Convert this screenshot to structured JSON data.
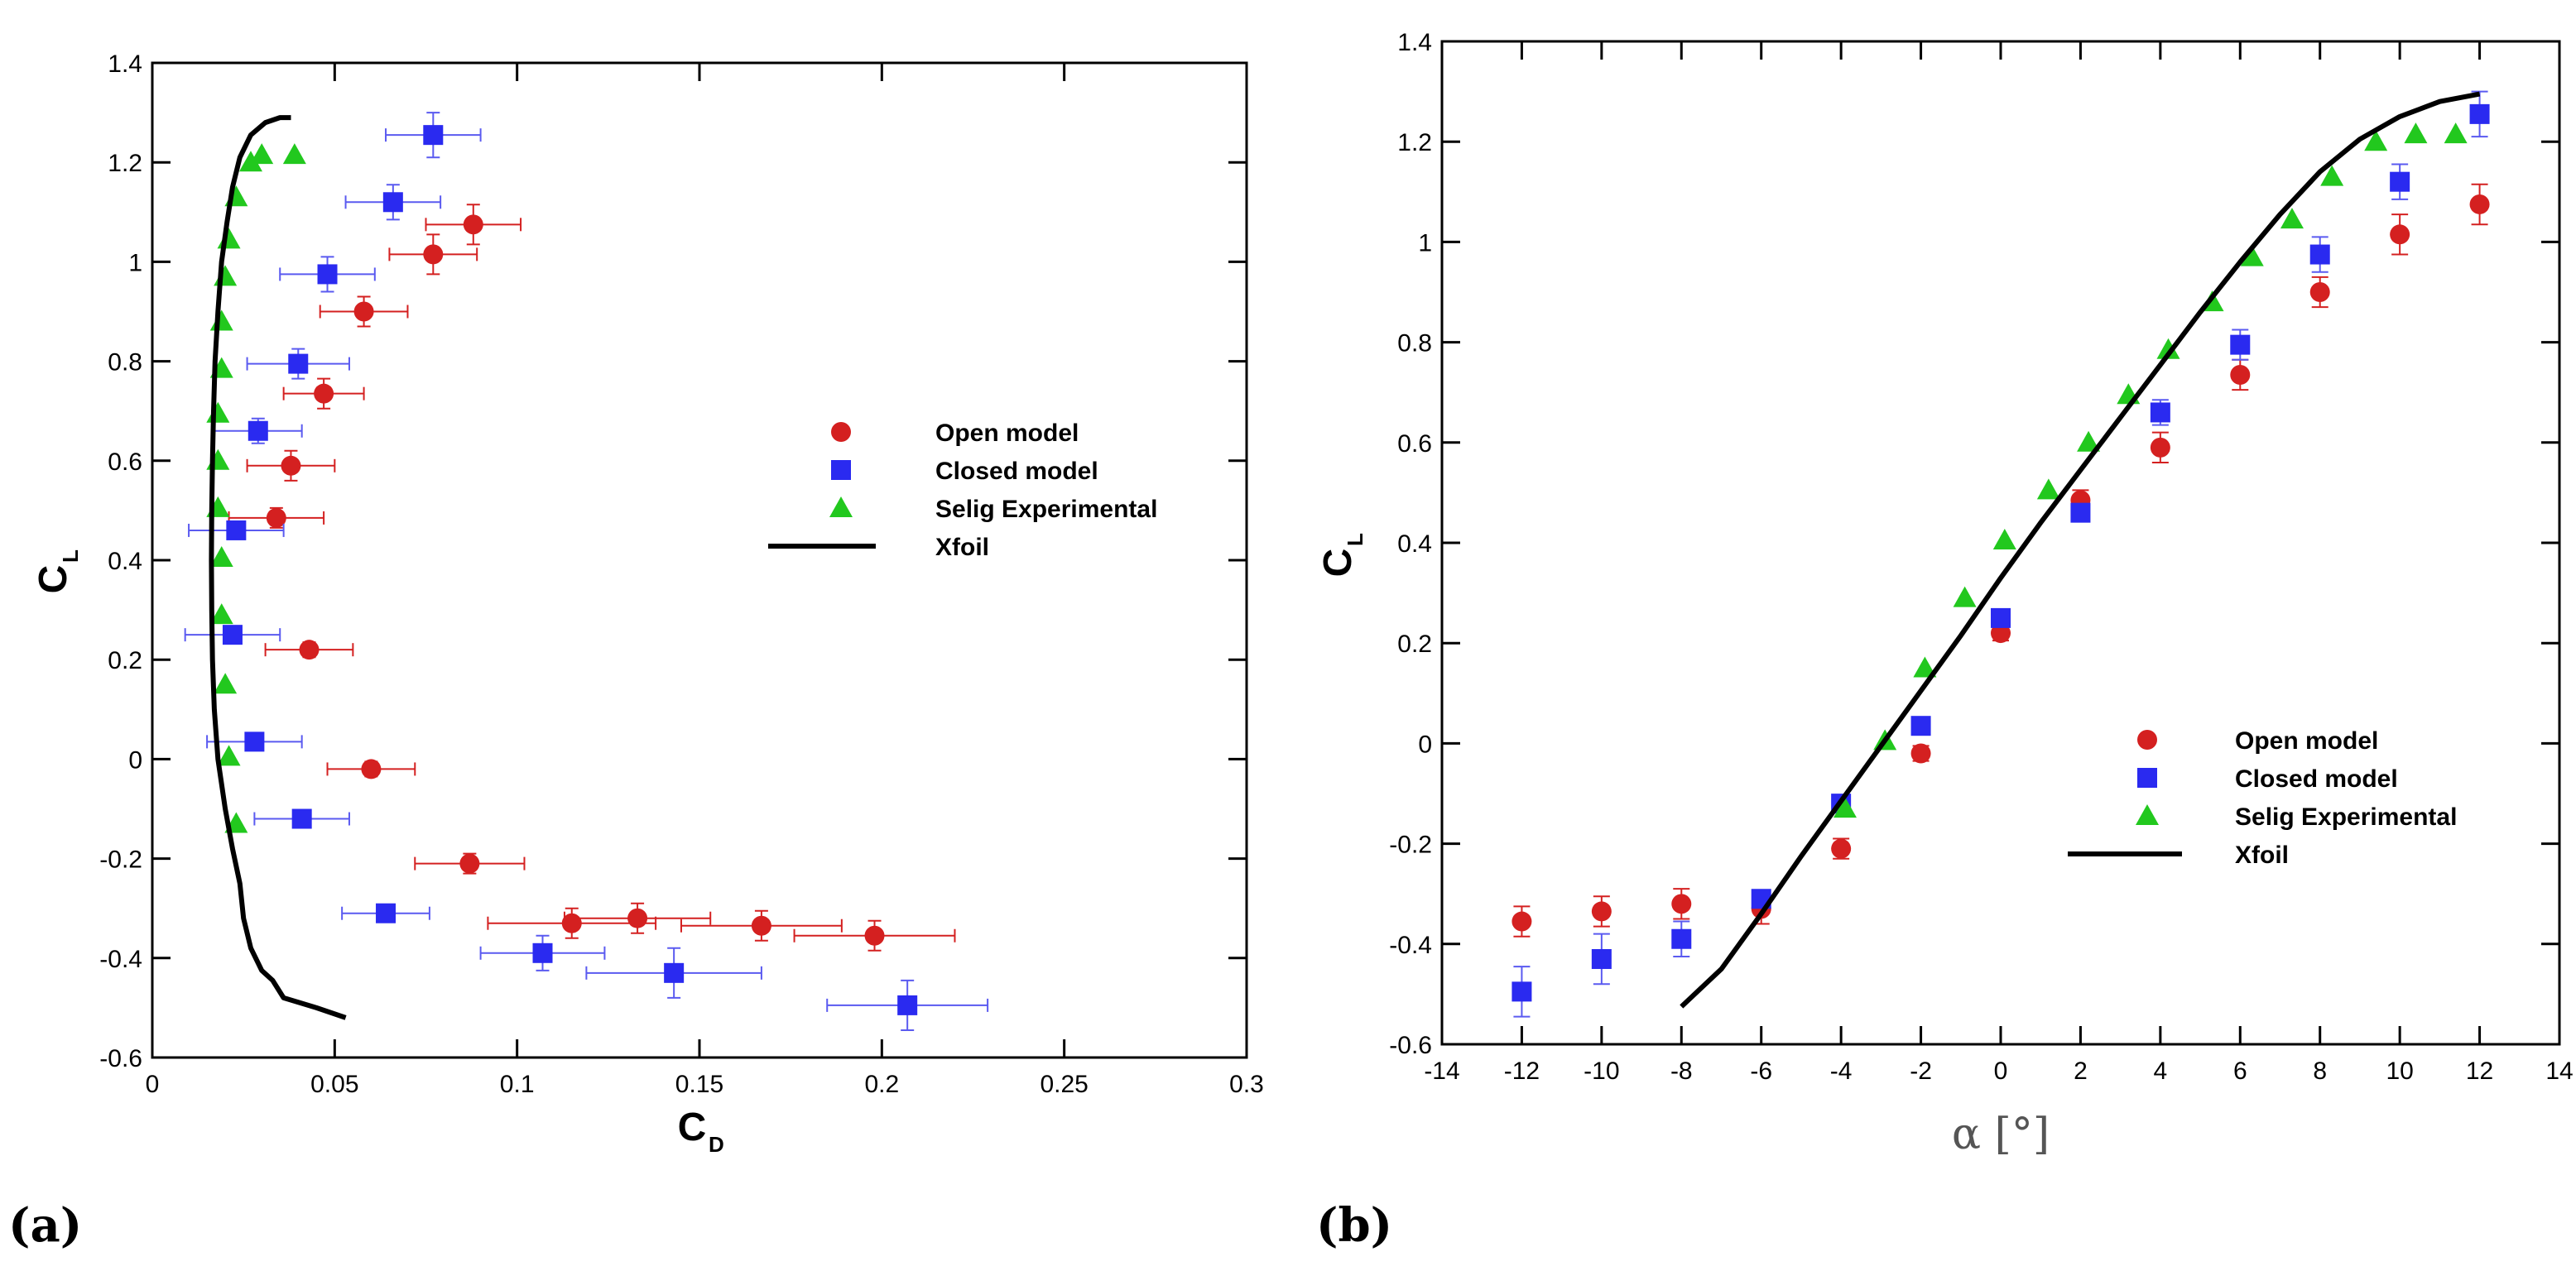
{
  "chart_data": [
    {
      "type": "scatter",
      "panel_label": "(a)",
      "xlabel": "C",
      "xlabel_sub": "D",
      "ylabel": "C",
      "ylabel_sub": "L",
      "xlim": [
        0,
        0.3
      ],
      "ylim": [
        -0.6,
        1.4
      ],
      "xticks": [
        0,
        0.05,
        0.1,
        0.15,
        0.2,
        0.25,
        0.3
      ],
      "xtick_labels": [
        "0",
        "0.05",
        "0.1",
        "0.15",
        "0.2",
        "0.25",
        "0.3"
      ],
      "yticks": [
        -0.6,
        -0.4,
        -0.2,
        0,
        0.2,
        0.4,
        0.6,
        0.8,
        1,
        1.2,
        1.4
      ],
      "ytick_labels": [
        "-0.6",
        "-0.4",
        "-0.2",
        "0",
        "0.2",
        "0.4",
        "0.6",
        "0.8",
        "1",
        "1.2",
        "1.4"
      ],
      "legend_position": "center-right",
      "series": [
        {
          "name": "Open model",
          "marker": "circle",
          "color": "#d42020",
          "errcolor": "#d42020",
          "points": [
            {
              "x": 0.198,
              "y": -0.355,
              "xerr": 0.022,
              "yerr": 0.03
            },
            {
              "x": 0.167,
              "y": -0.335,
              "xerr": 0.022,
              "yerr": 0.03
            },
            {
              "x": 0.133,
              "y": -0.32,
              "xerr": 0.02,
              "yerr": 0.03
            },
            {
              "x": 0.115,
              "y": -0.33,
              "xerr": 0.023,
              "yerr": 0.03
            },
            {
              "x": 0.087,
              "y": -0.21,
              "xerr": 0.015,
              "yerr": 0.02
            },
            {
              "x": 0.06,
              "y": -0.02,
              "xerr": 0.012,
              "yerr": 0.015
            },
            {
              "x": 0.043,
              "y": 0.22,
              "xerr": 0.012,
              "yerr": 0.015
            },
            {
              "x": 0.034,
              "y": 0.485,
              "xerr": 0.013,
              "yerr": 0.02
            },
            {
              "x": 0.038,
              "y": 0.59,
              "xerr": 0.012,
              "yerr": 0.03
            },
            {
              "x": 0.047,
              "y": 0.735,
              "xerr": 0.011,
              "yerr": 0.03
            },
            {
              "x": 0.058,
              "y": 0.9,
              "xerr": 0.012,
              "yerr": 0.03
            },
            {
              "x": 0.077,
              "y": 1.015,
              "xerr": 0.012,
              "yerr": 0.04
            },
            {
              "x": 0.088,
              "y": 1.075,
              "xerr": 0.013,
              "yerr": 0.04
            }
          ]
        },
        {
          "name": "Closed model",
          "marker": "square",
          "color": "#2a2af0",
          "errcolor": "#5a5af0",
          "points": [
            {
              "x": 0.207,
              "y": -0.495,
              "xerr": 0.022,
              "yerr": 0.05
            },
            {
              "x": 0.143,
              "y": -0.43,
              "xerr": 0.024,
              "yerr": 0.05
            },
            {
              "x": 0.107,
              "y": -0.39,
              "xerr": 0.017,
              "yerr": 0.035
            },
            {
              "x": 0.064,
              "y": -0.31,
              "xerr": 0.012,
              "yerr": 0.015
            },
            {
              "x": 0.041,
              "y": -0.12,
              "xerr": 0.013,
              "yerr": 0.015
            },
            {
              "x": 0.028,
              "y": 0.035,
              "xerr": 0.013,
              "yerr": 0.015
            },
            {
              "x": 0.022,
              "y": 0.25,
              "xerr": 0.013,
              "yerr": 0.015
            },
            {
              "x": 0.023,
              "y": 0.46,
              "xerr": 0.013,
              "yerr": 0.015
            },
            {
              "x": 0.029,
              "y": 0.66,
              "xerr": 0.012,
              "yerr": 0.025
            },
            {
              "x": 0.04,
              "y": 0.795,
              "xerr": 0.014,
              "yerr": 0.03
            },
            {
              "x": 0.048,
              "y": 0.975,
              "xerr": 0.013,
              "yerr": 0.035
            },
            {
              "x": 0.066,
              "y": 1.12,
              "xerr": 0.013,
              "yerr": 0.035
            },
            {
              "x": 0.077,
              "y": 1.255,
              "xerr": 0.013,
              "yerr": 0.045
            }
          ]
        },
        {
          "name": "Selig Experimental",
          "marker": "triangle",
          "color": "#22c81e",
          "points": [
            {
              "x": 0.023,
              "y": -0.13
            },
            {
              "x": 0.021,
              "y": 0.005
            },
            {
              "x": 0.02,
              "y": 0.15
            },
            {
              "x": 0.019,
              "y": 0.29
            },
            {
              "x": 0.019,
              "y": 0.405
            },
            {
              "x": 0.018,
              "y": 0.505
            },
            {
              "x": 0.018,
              "y": 0.6
            },
            {
              "x": 0.018,
              "y": 0.695
            },
            {
              "x": 0.019,
              "y": 0.785
            },
            {
              "x": 0.019,
              "y": 0.88
            },
            {
              "x": 0.02,
              "y": 0.97
            },
            {
              "x": 0.021,
              "y": 1.045
            },
            {
              "x": 0.023,
              "y": 1.13
            },
            {
              "x": 0.027,
              "y": 1.2
            },
            {
              "x": 0.03,
              "y": 1.215
            },
            {
              "x": 0.039,
              "y": 1.215
            }
          ]
        },
        {
          "name": "Xfoil",
          "marker": "line",
          "color": "#000000",
          "points": [
            {
              "x": 0.053,
              "y": -0.52
            },
            {
              "x": 0.045,
              "y": -0.5
            },
            {
              "x": 0.036,
              "y": -0.48
            },
            {
              "x": 0.033,
              "y": -0.445
            },
            {
              "x": 0.03,
              "y": -0.425
            },
            {
              "x": 0.027,
              "y": -0.38
            },
            {
              "x": 0.025,
              "y": -0.32
            },
            {
              "x": 0.024,
              "y": -0.25
            },
            {
              "x": 0.022,
              "y": -0.18
            },
            {
              "x": 0.02,
              "y": -0.1
            },
            {
              "x": 0.018,
              "y": 0.0
            },
            {
              "x": 0.017,
              "y": 0.1
            },
            {
              "x": 0.0165,
              "y": 0.2
            },
            {
              "x": 0.0163,
              "y": 0.3
            },
            {
              "x": 0.0162,
              "y": 0.4
            },
            {
              "x": 0.0163,
              "y": 0.5
            },
            {
              "x": 0.0165,
              "y": 0.6
            },
            {
              "x": 0.0168,
              "y": 0.7
            },
            {
              "x": 0.0172,
              "y": 0.8
            },
            {
              "x": 0.018,
              "y": 0.9
            },
            {
              "x": 0.019,
              "y": 1.0
            },
            {
              "x": 0.0205,
              "y": 1.08
            },
            {
              "x": 0.022,
              "y": 1.15
            },
            {
              "x": 0.024,
              "y": 1.21
            },
            {
              "x": 0.027,
              "y": 1.255
            },
            {
              "x": 0.031,
              "y": 1.28
            },
            {
              "x": 0.035,
              "y": 1.29
            },
            {
              "x": 0.038,
              "y": 1.29
            }
          ]
        }
      ]
    },
    {
      "type": "scatter",
      "panel_label": "(b)",
      "xlabel": "α [°]",
      "ylabel": "C",
      "ylabel_sub": "L",
      "xlim": [
        -14,
        14
      ],
      "ylim": [
        -0.6,
        1.4
      ],
      "xticks": [
        -14,
        -12,
        -10,
        -8,
        -6,
        -4,
        -2,
        0,
        2,
        4,
        6,
        8,
        10,
        12,
        14
      ],
      "xtick_labels": [
        "-14",
        "-12",
        "-10",
        "-8",
        "-6",
        "-4",
        "-2",
        "0",
        "2",
        "4",
        "6",
        "8",
        "10",
        "12",
        "14"
      ],
      "yticks": [
        -0.6,
        -0.4,
        -0.2,
        0,
        0.2,
        0.4,
        0.6,
        0.8,
        1,
        1.2,
        1.4
      ],
      "ytick_labels": [
        "-0.6",
        "-0.4",
        "-0.2",
        "0",
        "0.2",
        "0.4",
        "0.6",
        "0.8",
        "1",
        "1.2",
        "1.4"
      ],
      "legend_position": "lower-right",
      "series": [
        {
          "name": "Open model",
          "marker": "circle",
          "color": "#d42020",
          "errcolor": "#d42020",
          "points": [
            {
              "x": -12,
              "y": -0.355,
              "yerr": 0.03
            },
            {
              "x": -10,
              "y": -0.335,
              "yerr": 0.03
            },
            {
              "x": -8,
              "y": -0.32,
              "yerr": 0.03
            },
            {
              "x": -6,
              "y": -0.33,
              "yerr": 0.03
            },
            {
              "x": -4,
              "y": -0.21,
              "yerr": 0.02
            },
            {
              "x": -2,
              "y": -0.02,
              "yerr": 0.015
            },
            {
              "x": 0,
              "y": 0.22,
              "yerr": 0.015
            },
            {
              "x": 2,
              "y": 0.485,
              "yerr": 0.02
            },
            {
              "x": 4,
              "y": 0.59,
              "yerr": 0.03
            },
            {
              "x": 6,
              "y": 0.735,
              "yerr": 0.03
            },
            {
              "x": 8,
              "y": 0.9,
              "yerr": 0.03
            },
            {
              "x": 10,
              "y": 1.015,
              "yerr": 0.04
            },
            {
              "x": 12,
              "y": 1.075,
              "yerr": 0.04
            }
          ]
        },
        {
          "name": "Closed model",
          "marker": "square",
          "color": "#2a2af0",
          "errcolor": "#5a5af0",
          "points": [
            {
              "x": -12,
              "y": -0.495,
              "yerr": 0.05
            },
            {
              "x": -10,
              "y": -0.43,
              "yerr": 0.05
            },
            {
              "x": -8,
              "y": -0.39,
              "yerr": 0.035
            },
            {
              "x": -6,
              "y": -0.31,
              "yerr": 0.015
            },
            {
              "x": -4,
              "y": -0.12,
              "yerr": 0.015
            },
            {
              "x": -2,
              "y": 0.035,
              "yerr": 0.015
            },
            {
              "x": 0,
              "y": 0.25,
              "yerr": 0.015
            },
            {
              "x": 2,
              "y": 0.46,
              "yerr": 0.015
            },
            {
              "x": 4,
              "y": 0.66,
              "yerr": 0.025
            },
            {
              "x": 6,
              "y": 0.795,
              "yerr": 0.03
            },
            {
              "x": 8,
              "y": 0.975,
              "yerr": 0.035
            },
            {
              "x": 10,
              "y": 1.12,
              "yerr": 0.035
            },
            {
              "x": 12,
              "y": 1.255,
              "yerr": 0.045
            }
          ]
        },
        {
          "name": "Selig Experimental",
          "marker": "triangle",
          "color": "#22c81e",
          "points": [
            {
              "x": -3.9,
              "y": -0.13
            },
            {
              "x": -2.9,
              "y": 0.005
            },
            {
              "x": -1.9,
              "y": 0.15
            },
            {
              "x": -0.9,
              "y": 0.29
            },
            {
              "x": 0.1,
              "y": 0.405
            },
            {
              "x": 1.2,
              "y": 0.505
            },
            {
              "x": 2.2,
              "y": 0.6
            },
            {
              "x": 3.2,
              "y": 0.695
            },
            {
              "x": 4.2,
              "y": 0.785
            },
            {
              "x": 5.3,
              "y": 0.88
            },
            {
              "x": 6.3,
              "y": 0.97
            },
            {
              "x": 7.3,
              "y": 1.045
            },
            {
              "x": 8.3,
              "y": 1.13
            },
            {
              "x": 9.4,
              "y": 1.2
            },
            {
              "x": 10.4,
              "y": 1.215
            },
            {
              "x": 11.4,
              "y": 1.215
            }
          ]
        },
        {
          "name": "Xfoil",
          "marker": "line",
          "color": "#000000",
          "points": [
            {
              "x": -8,
              "y": -0.525
            },
            {
              "x": -7,
              "y": -0.45
            },
            {
              "x": -6,
              "y": -0.34
            },
            {
              "x": -5,
              "y": -0.225
            },
            {
              "x": -4,
              "y": -0.115
            },
            {
              "x": -3,
              "y": -0.005
            },
            {
              "x": -2,
              "y": 0.105
            },
            {
              "x": -1,
              "y": 0.215
            },
            {
              "x": 0,
              "y": 0.33
            },
            {
              "x": 1,
              "y": 0.44
            },
            {
              "x": 2,
              "y": 0.545
            },
            {
              "x": 3,
              "y": 0.65
            },
            {
              "x": 4,
              "y": 0.755
            },
            {
              "x": 5,
              "y": 0.86
            },
            {
              "x": 6,
              "y": 0.96
            },
            {
              "x": 7,
              "y": 1.055
            },
            {
              "x": 8,
              "y": 1.14
            },
            {
              "x": 9,
              "y": 1.205
            },
            {
              "x": 10,
              "y": 1.25
            },
            {
              "x": 11,
              "y": 1.28
            },
            {
              "x": 12,
              "y": 1.295
            }
          ]
        }
      ]
    }
  ]
}
